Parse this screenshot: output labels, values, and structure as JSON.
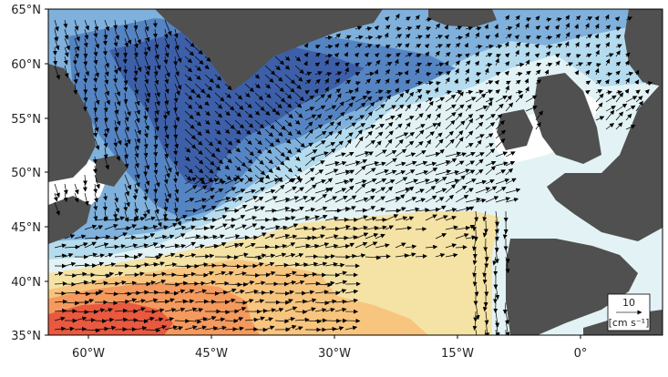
{
  "map": {
    "axes": {
      "lat_labels": [
        "65°N",
        "60°N",
        "55°N",
        "50°N",
        "45°N",
        "40°N",
        "35°N"
      ],
      "lon_labels": [
        "60°W",
        "45°W",
        "30°W",
        "15°W",
        "0°"
      ]
    },
    "extent": {
      "lon_min": -66,
      "lon_max": 9,
      "lat_min": 35,
      "lat_max": 65
    },
    "legend": {
      "scale_value": "10",
      "units": "[cm s⁻¹]"
    },
    "colors": {
      "land": "#505050",
      "white_gaps": "#ffffff",
      "shading_levels": [
        "#3d5fa8",
        "#5584c3",
        "#7fb1dc",
        "#b5dcee",
        "#e3f3f5",
        "#f5e3a6",
        "#f8c57f",
        "#f59a5e",
        "#e8593f"
      ],
      "vectors": "#000000"
    },
    "vector_field_description": "Surface current velocity arrows"
  }
}
